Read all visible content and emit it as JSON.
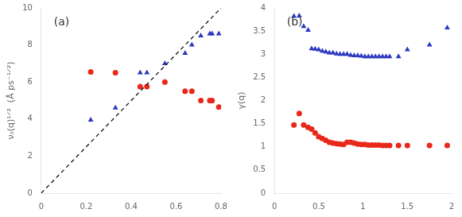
{
  "chart_data": [
    {
      "type": "scatter",
      "annotations": [
        "(a)"
      ],
      "ylabel": "νₛ(q)¹ᐟ²  (Å ps⁻¹ᐟ²)",
      "xlim": [
        0,
        0.8
      ],
      "ylim": [
        0,
        10
      ],
      "xticks": [
        0,
        0.2,
        0.4,
        0.6,
        0.8
      ],
      "yticks": [
        0,
        2,
        4,
        6,
        8,
        10
      ],
      "grid": false,
      "series": [
        {
          "type": "line",
          "line_style": "dashed",
          "color": "#000000",
          "x": [
            0,
            0.8
          ],
          "values": [
            0,
            10
          ]
        },
        {
          "marker": "circle",
          "color": "#e8281a",
          "x": [
            0.22,
            0.33,
            0.44,
            0.47,
            0.55,
            0.64,
            0.67,
            0.71,
            0.75,
            0.76,
            0.79
          ],
          "values": [
            6.55,
            6.5,
            5.75,
            5.75,
            6.0,
            5.5,
            5.5,
            5.0,
            5.0,
            5.0,
            4.65
          ]
        },
        {
          "marker": "triangle",
          "color": "#2a39c0",
          "x": [
            0.22,
            0.33,
            0.44,
            0.47,
            0.55,
            0.64,
            0.67,
            0.71,
            0.75,
            0.76,
            0.79
          ],
          "values": [
            3.95,
            4.6,
            6.5,
            6.5,
            7.0,
            7.55,
            8.0,
            8.5,
            8.6,
            8.6,
            8.6
          ]
        }
      ]
    },
    {
      "type": "scatter",
      "annotations": [
        "(b)"
      ],
      "ylabel": "γ(q)",
      "xlim": [
        0,
        2.0
      ],
      "ylim": [
        0,
        4
      ],
      "xticks": [
        0,
        0.5,
        1.0,
        1.5,
        2.0
      ],
      "yticks": [
        0,
        0.5,
        1.0,
        1.5,
        2.0,
        2.5,
        3.0,
        3.5,
        4.0
      ],
      "grid": false,
      "series": [
        {
          "marker": "circle",
          "color": "#e8281a",
          "x": [
            0.22,
            0.28,
            0.33,
            0.38,
            0.42,
            0.46,
            0.5,
            0.54,
            0.58,
            0.62,
            0.66,
            0.7,
            0.74,
            0.78,
            0.82,
            0.86,
            0.9,
            0.94,
            0.98,
            1.02,
            1.06,
            1.1,
            1.14,
            1.18,
            1.22,
            1.26,
            1.3,
            1.4,
            1.5,
            1.75,
            1.95
          ],
          "values": [
            1.47,
            1.72,
            1.47,
            1.42,
            1.38,
            1.3,
            1.22,
            1.18,
            1.14,
            1.1,
            1.08,
            1.07,
            1.06,
            1.05,
            1.1,
            1.1,
            1.08,
            1.06,
            1.05,
            1.05,
            1.04,
            1.04,
            1.04,
            1.04,
            1.03,
            1.03,
            1.03,
            1.03,
            1.03,
            1.03,
            1.03
          ]
        },
        {
          "marker": "triangle",
          "color": "#2a39c0",
          "x": [
            0.22,
            0.28,
            0.33,
            0.38,
            0.42,
            0.46,
            0.5,
            0.54,
            0.58,
            0.62,
            0.66,
            0.7,
            0.74,
            0.78,
            0.82,
            0.86,
            0.9,
            0.94,
            0.98,
            1.02,
            1.06,
            1.1,
            1.14,
            1.18,
            1.22,
            1.26,
            1.3,
            1.4,
            1.5,
            1.75,
            1.95
          ],
          "values": [
            3.82,
            3.83,
            3.6,
            3.52,
            3.12,
            3.11,
            3.1,
            3.07,
            3.05,
            3.03,
            3.03,
            3.01,
            3.0,
            3.0,
            3.0,
            2.98,
            2.97,
            2.97,
            2.96,
            2.95,
            2.95,
            2.95,
            2.95,
            2.95,
            2.95,
            2.95,
            2.95,
            2.95,
            3.1,
            3.2,
            3.57
          ]
        }
      ]
    }
  ]
}
